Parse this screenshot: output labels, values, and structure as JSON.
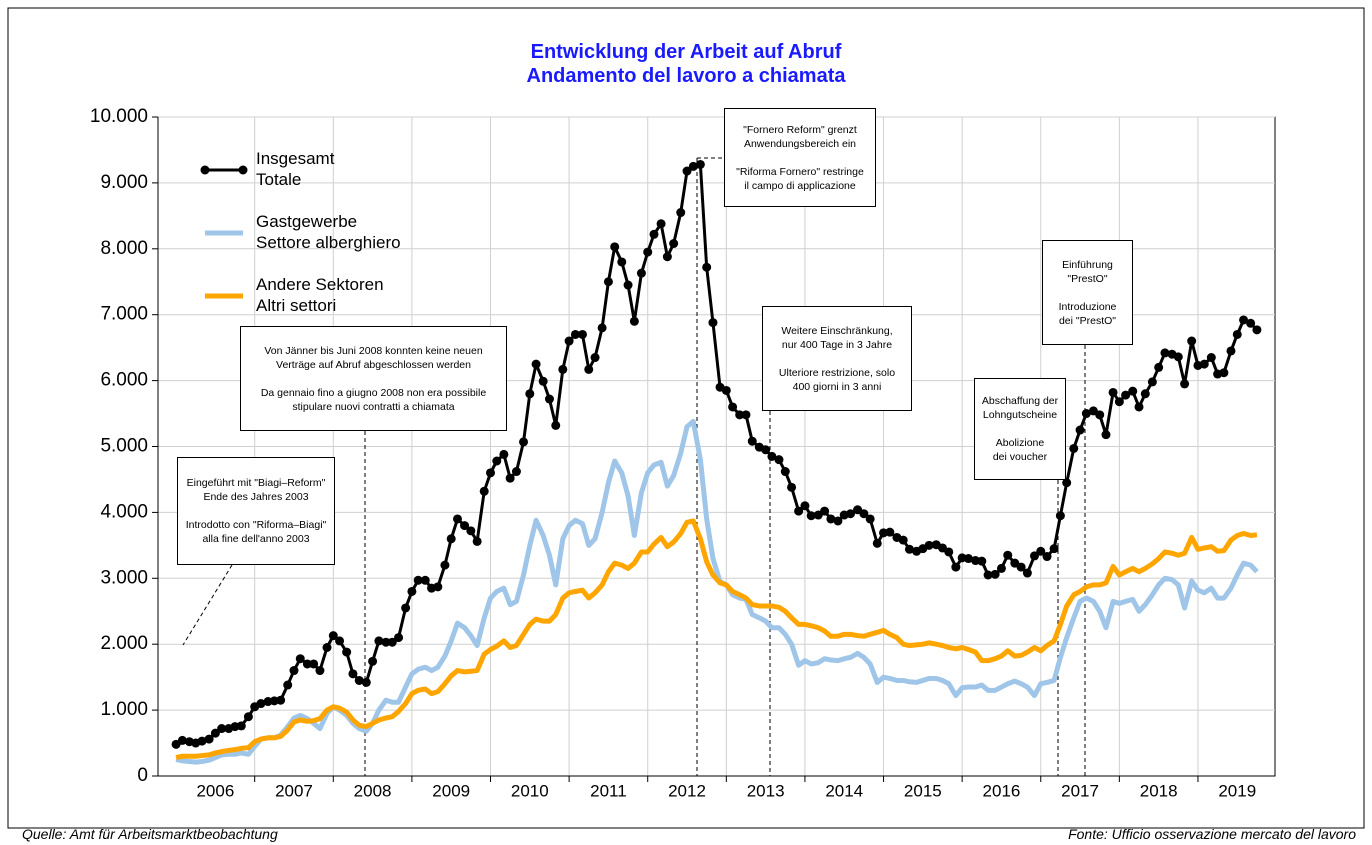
{
  "chart_data": {
    "type": "line",
    "title": "Entwicklung der Arbeit auf Abruf\nAndamento del lavoro a chiamata",
    "source_de": "Quelle: Amt für Arbeitsmarktbeobachtung",
    "source_it": "Fonte: Ufficio osservazione mercato del lavoro",
    "annotations": [
      "Eingeführt mit \"Biagi–Reform\"\nEnde des Jahres 2003\n\nIntrodotto con \"Riforma–Biagi\"\nalla fine dell'anno 2003",
      "Von Jänner bis Juni 2008 konnten keine neuen\nVerträge auf Abruf abgeschlossen werden\n\nDa gennaio fino a giugno 2008 non era possibile\nstipulare nuovi contratti a chiamata",
      "\"Fornero Reform\" grenzt\nAnwendungsbereich ein\n\n\"Riforma Fornero\" restringe\nil campo di applicazione",
      "Weitere Einschränkung,\nnur 400 Tage in 3 Jahre\n\nUlteriore restrizione, solo\n400 giorni in 3 anni",
      "Abschaffung der\nLohngutscheine\n\nAbolizione\ndei voucher",
      "Einführung\n\"PrestO\"\n\nIntroduzione\ndei \"PrestO\""
    ],
    "x": [
      2006,
      2006.08,
      2006.17,
      2006.25,
      2006.33,
      2006.42,
      2006.5,
      2006.58,
      2006.67,
      2006.75,
      2006.83,
      2006.92,
      2007,
      2007.08,
      2007.17,
      2007.25,
      2007.33,
      2007.42,
      2007.5,
      2007.58,
      2007.67,
      2007.75,
      2007.83,
      2007.92,
      2008,
      2008.08,
      2008.17,
      2008.25,
      2008.33,
      2008.42,
      2008.5,
      2008.58,
      2008.67,
      2008.75,
      2008.83,
      2008.92,
      2009,
      2009.08,
      2009.17,
      2009.25,
      2009.33,
      2009.42,
      2009.5,
      2009.58,
      2009.67,
      2009.75,
      2009.83,
      2009.92,
      2010,
      2010.08,
      2010.17,
      2010.25,
      2010.33,
      2010.42,
      2010.5,
      2010.58,
      2010.67,
      2010.75,
      2010.83,
      2010.92,
      2011,
      2011.08,
      2011.17,
      2011.25,
      2011.33,
      2011.42,
      2011.5,
      2011.58,
      2011.67,
      2011.75,
      2011.83,
      2011.92,
      2012,
      2012.08,
      2012.17,
      2012.25,
      2012.33,
      2012.42,
      2012.5,
      2012.58,
      2012.67,
      2012.75,
      2012.83,
      2012.92,
      2013,
      2013.08,
      2013.17,
      2013.25,
      2013.33,
      2013.42,
      2013.5,
      2013.58,
      2013.67,
      2013.75,
      2013.83,
      2013.92,
      2014,
      2014.08,
      2014.17,
      2014.25,
      2014.33,
      2014.42,
      2014.5,
      2014.58,
      2014.67,
      2014.75,
      2014.83,
      2014.92,
      2015,
      2015.08,
      2015.17,
      2015.25,
      2015.33,
      2015.42,
      2015.5,
      2015.58,
      2015.67,
      2015.75,
      2015.83,
      2015.92,
      2016,
      2016.08,
      2016.17,
      2016.25,
      2016.33,
      2016.42,
      2016.5,
      2016.58,
      2016.67,
      2016.75,
      2016.83,
      2016.92,
      2017,
      2017.08,
      2017.17,
      2017.25,
      2017.33,
      2017.42,
      2017.5,
      2017.58,
      2017.67,
      2017.75,
      2017.83,
      2017.92,
      2018,
      2018.08,
      2018.17,
      2018.25,
      2018.33,
      2018.42,
      2018.5,
      2018.58,
      2018.67,
      2018.75,
      2018.83,
      2018.92,
      2019,
      2019.08,
      2019.17,
      2019.25,
      2019.33,
      2019.42,
      2019.5,
      2019.58,
      2019.67,
      2019.75
    ],
    "series": [
      {
        "name": "Gastgewerbe\nSettore alberghiero",
        "color": "#9fc5e8",
        "values": [
          250,
          230,
          220,
          210,
          220,
          240,
          280,
          320,
          330,
          330,
          350,
          330,
          450,
          560,
          580,
          580,
          620,
          750,
          880,
          920,
          870,
          800,
          720,
          950,
          1050,
          1000,
          920,
          800,
          720,
          680,
          800,
          1000,
          1150,
          1120,
          1120,
          1350,
          1550,
          1620,
          1650,
          1600,
          1650,
          1820,
          2050,
          2320,
          2250,
          2130,
          1980,
          2400,
          2700,
          2800,
          2850,
          2600,
          2650,
          3050,
          3500,
          3880,
          3650,
          3350,
          2900,
          3600,
          3800,
          3880,
          3830,
          3500,
          3600,
          4000,
          4450,
          4780,
          4600,
          4250,
          3650,
          4300,
          4600,
          4720,
          4760,
          4400,
          4560,
          4900,
          5300,
          5380,
          4800,
          3900,
          3300,
          2950,
          2900,
          2750,
          2700,
          2680,
          2450,
          2400,
          2350,
          2250,
          2250,
          2150,
          2000,
          1680,
          1750,
          1700,
          1720,
          1780,
          1760,
          1750,
          1780,
          1800,
          1860,
          1800,
          1700,
          1420,
          1500,
          1480,
          1450,
          1450,
          1430,
          1420,
          1450,
          1480,
          1480,
          1450,
          1400,
          1220,
          1340,
          1350,
          1350,
          1380,
          1300,
          1300,
          1350,
          1400,
          1440,
          1400,
          1350,
          1220,
          1400,
          1420,
          1450,
          1800,
          2100,
          2400,
          2650,
          2700,
          2650,
          2500,
          2250,
          2650,
          2620,
          2650,
          2680,
          2500,
          2600,
          2750,
          2900,
          3000,
          2980,
          2900,
          2550,
          2960,
          2820,
          2780,
          2850,
          2700,
          2700,
          2850,
          3050,
          3230,
          3200,
          3100
        ]
      },
      {
        "name": "Andere Sektoren\nAltri settori",
        "color": "#ffa500",
        "values": [
          280,
          300,
          300,
          300,
          310,
          320,
          350,
          370,
          390,
          400,
          420,
          430,
          520,
          560,
          580,
          580,
          600,
          700,
          820,
          850,
          830,
          840,
          870,
          1000,
          1050,
          1030,
          970,
          850,
          770,
          750,
          800,
          850,
          880,
          900,
          980,
          1100,
          1250,
          1300,
          1320,
          1250,
          1280,
          1400,
          1520,
          1600,
          1580,
          1590,
          1600,
          1850,
          1920,
          1970,
          2050,
          1950,
          1980,
          2150,
          2300,
          2380,
          2350,
          2350,
          2450,
          2700,
          2780,
          2800,
          2820,
          2700,
          2780,
          2900,
          3100,
          3230,
          3200,
          3150,
          3230,
          3400,
          3400,
          3520,
          3620,
          3480,
          3550,
          3680,
          3850,
          3870,
          3600,
          3250,
          3050,
          2930,
          2900,
          2800,
          2750,
          2700,
          2600,
          2580,
          2580,
          2580,
          2560,
          2500,
          2400,
          2300,
          2300,
          2280,
          2250,
          2200,
          2120,
          2120,
          2150,
          2150,
          2130,
          2120,
          2150,
          2180,
          2210,
          2150,
          2100,
          2000,
          1980,
          1990,
          2000,
          2020,
          2000,
          1980,
          1950,
          1930,
          1950,
          1920,
          1880,
          1750,
          1750,
          1780,
          1820,
          1900,
          1820,
          1830,
          1880,
          1950,
          1900,
          1980,
          2050,
          2300,
          2580,
          2750,
          2800,
          2870,
          2900,
          2900,
          2930,
          3180,
          3050,
          3100,
          3150,
          3100,
          3150,
          3220,
          3300,
          3400,
          3380,
          3350,
          3380,
          3620,
          3440,
          3460,
          3480,
          3410,
          3420,
          3580,
          3650,
          3680,
          3650,
          3660
        ]
      },
      {
        "name": "Insgesamt\nTotale",
        "color": "#000000",
        "markers": true,
        "values": [
          480,
          540,
          520,
          500,
          530,
          560,
          650,
          720,
          720,
          750,
          760,
          900,
          1050,
          1100,
          1130,
          1140,
          1150,
          1380,
          1600,
          1780,
          1700,
          1700,
          1600,
          1950,
          2130,
          2050,
          1880,
          1550,
          1450,
          1420,
          1740,
          2050,
          2030,
          2030,
          2100,
          2550,
          2800,
          2970,
          2970,
          2850,
          2870,
          3200,
          3600,
          3900,
          3800,
          3720,
          3560,
          4320,
          4600,
          4780,
          4880,
          4520,
          4620,
          5070,
          5800,
          6250,
          5990,
          5720,
          5320,
          6170,
          6600,
          6700,
          6700,
          6170,
          6350,
          6800,
          7500,
          8030,
          7800,
          7450,
          6900,
          7630,
          7950,
          8220,
          8380,
          7880,
          8080,
          8550,
          9180,
          9250,
          9280,
          7720,
          6880,
          5900,
          5850,
          5600,
          5480,
          5480,
          5080,
          4990,
          4950,
          4850,
          4800,
          4620,
          4380,
          4020,
          4100,
          3950,
          3960,
          4020,
          3900,
          3870,
          3960,
          3980,
          4040,
          3980,
          3900,
          3530,
          3690,
          3700,
          3620,
          3580,
          3440,
          3410,
          3450,
          3500,
          3510,
          3460,
          3400,
          3170,
          3310,
          3300,
          3270,
          3260,
          3050,
          3060,
          3150,
          3350,
          3230,
          3170,
          3080,
          3340,
          3410,
          3330,
          3450,
          3950,
          4450,
          4970,
          5250,
          5500,
          5540,
          5480,
          5180,
          5820,
          5680,
          5780,
          5840,
          5600,
          5800,
          5980,
          6200,
          6420,
          6400,
          6360,
          5950,
          6600,
          6230,
          6250,
          6350,
          6100,
          6120,
          6450,
          6700,
          6920,
          6870,
          6770
        ]
      }
    ],
    "legend_order": [
      2,
      0,
      1
    ],
    "xlim": [
      2005.77,
      2019.98
    ],
    "xticks": [
      {
        "value": 2006.5,
        "label": "2006"
      },
      {
        "value": 2007.5,
        "label": "2007"
      },
      {
        "value": 2008.5,
        "label": "2008"
      },
      {
        "value": 2009.5,
        "label": "2009"
      },
      {
        "value": 2010.5,
        "label": "2010"
      },
      {
        "value": 2011.5,
        "label": "2011"
      },
      {
        "value": 2012.5,
        "label": "2012"
      },
      {
        "value": 2013.5,
        "label": "2013"
      },
      {
        "value": 2014.5,
        "label": "2014"
      },
      {
        "value": 2015.5,
        "label": "2015"
      },
      {
        "value": 2016.5,
        "label": "2016"
      },
      {
        "value": 2017.5,
        "label": "2017"
      },
      {
        "value": 2018.5,
        "label": "2018"
      },
      {
        "value": 2019.5,
        "label": "2019"
      }
    ],
    "ylim": [
      0,
      10000
    ],
    "yticks": [
      0,
      {
        "value": 1000,
        "label": "1.000"
      },
      {
        "value": 2000,
        "label": "2.000"
      },
      {
        "value": 3000,
        "label": "3.000"
      },
      {
        "value": 4000,
        "label": "4.000"
      },
      {
        "value": 5000,
        "label": "5.000"
      },
      {
        "value": 6000,
        "label": "6.000"
      },
      {
        "value": 7000,
        "label": "7.000"
      },
      {
        "value": 8000,
        "label": "8.000"
      },
      {
        "value": 9000,
        "label": "9.000"
      },
      {
        "value": 10000,
        "label": "10.000"
      }
    ],
    "grid": true
  }
}
